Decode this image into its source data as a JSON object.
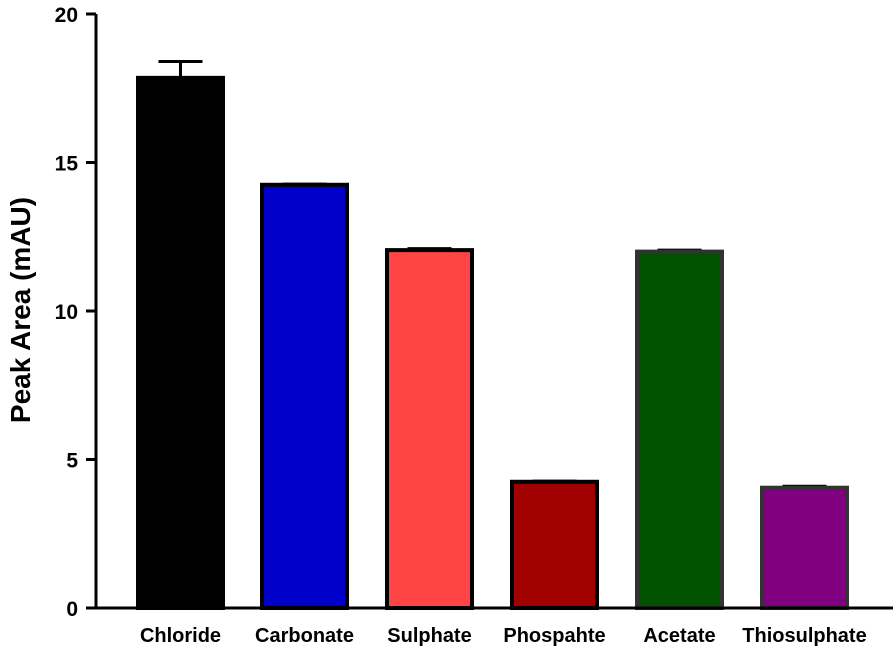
{
  "chart_data": {
    "type": "bar",
    "title": "",
    "xlabel": "",
    "ylabel": "Peak Area (mAU)",
    "ylim": [
      0,
      20
    ],
    "yticks": [
      0,
      5,
      10,
      15,
      20
    ],
    "grid": false,
    "legend": "none",
    "categories": [
      "Chloride",
      "Carbonate",
      "Sulphate",
      "Phospahte",
      "Acetate",
      "Thiosulphate"
    ],
    "values": [
      17.85,
      14.25,
      12.05,
      4.25,
      12.0,
      4.05
    ],
    "error": [
      0.55,
      0.02,
      0.05,
      0.02,
      0.05,
      0.05
    ],
    "colors": [
      "#000000",
      "#0000c8",
      "#ff4444",
      "#a00000",
      "#005200",
      "#800080"
    ]
  }
}
